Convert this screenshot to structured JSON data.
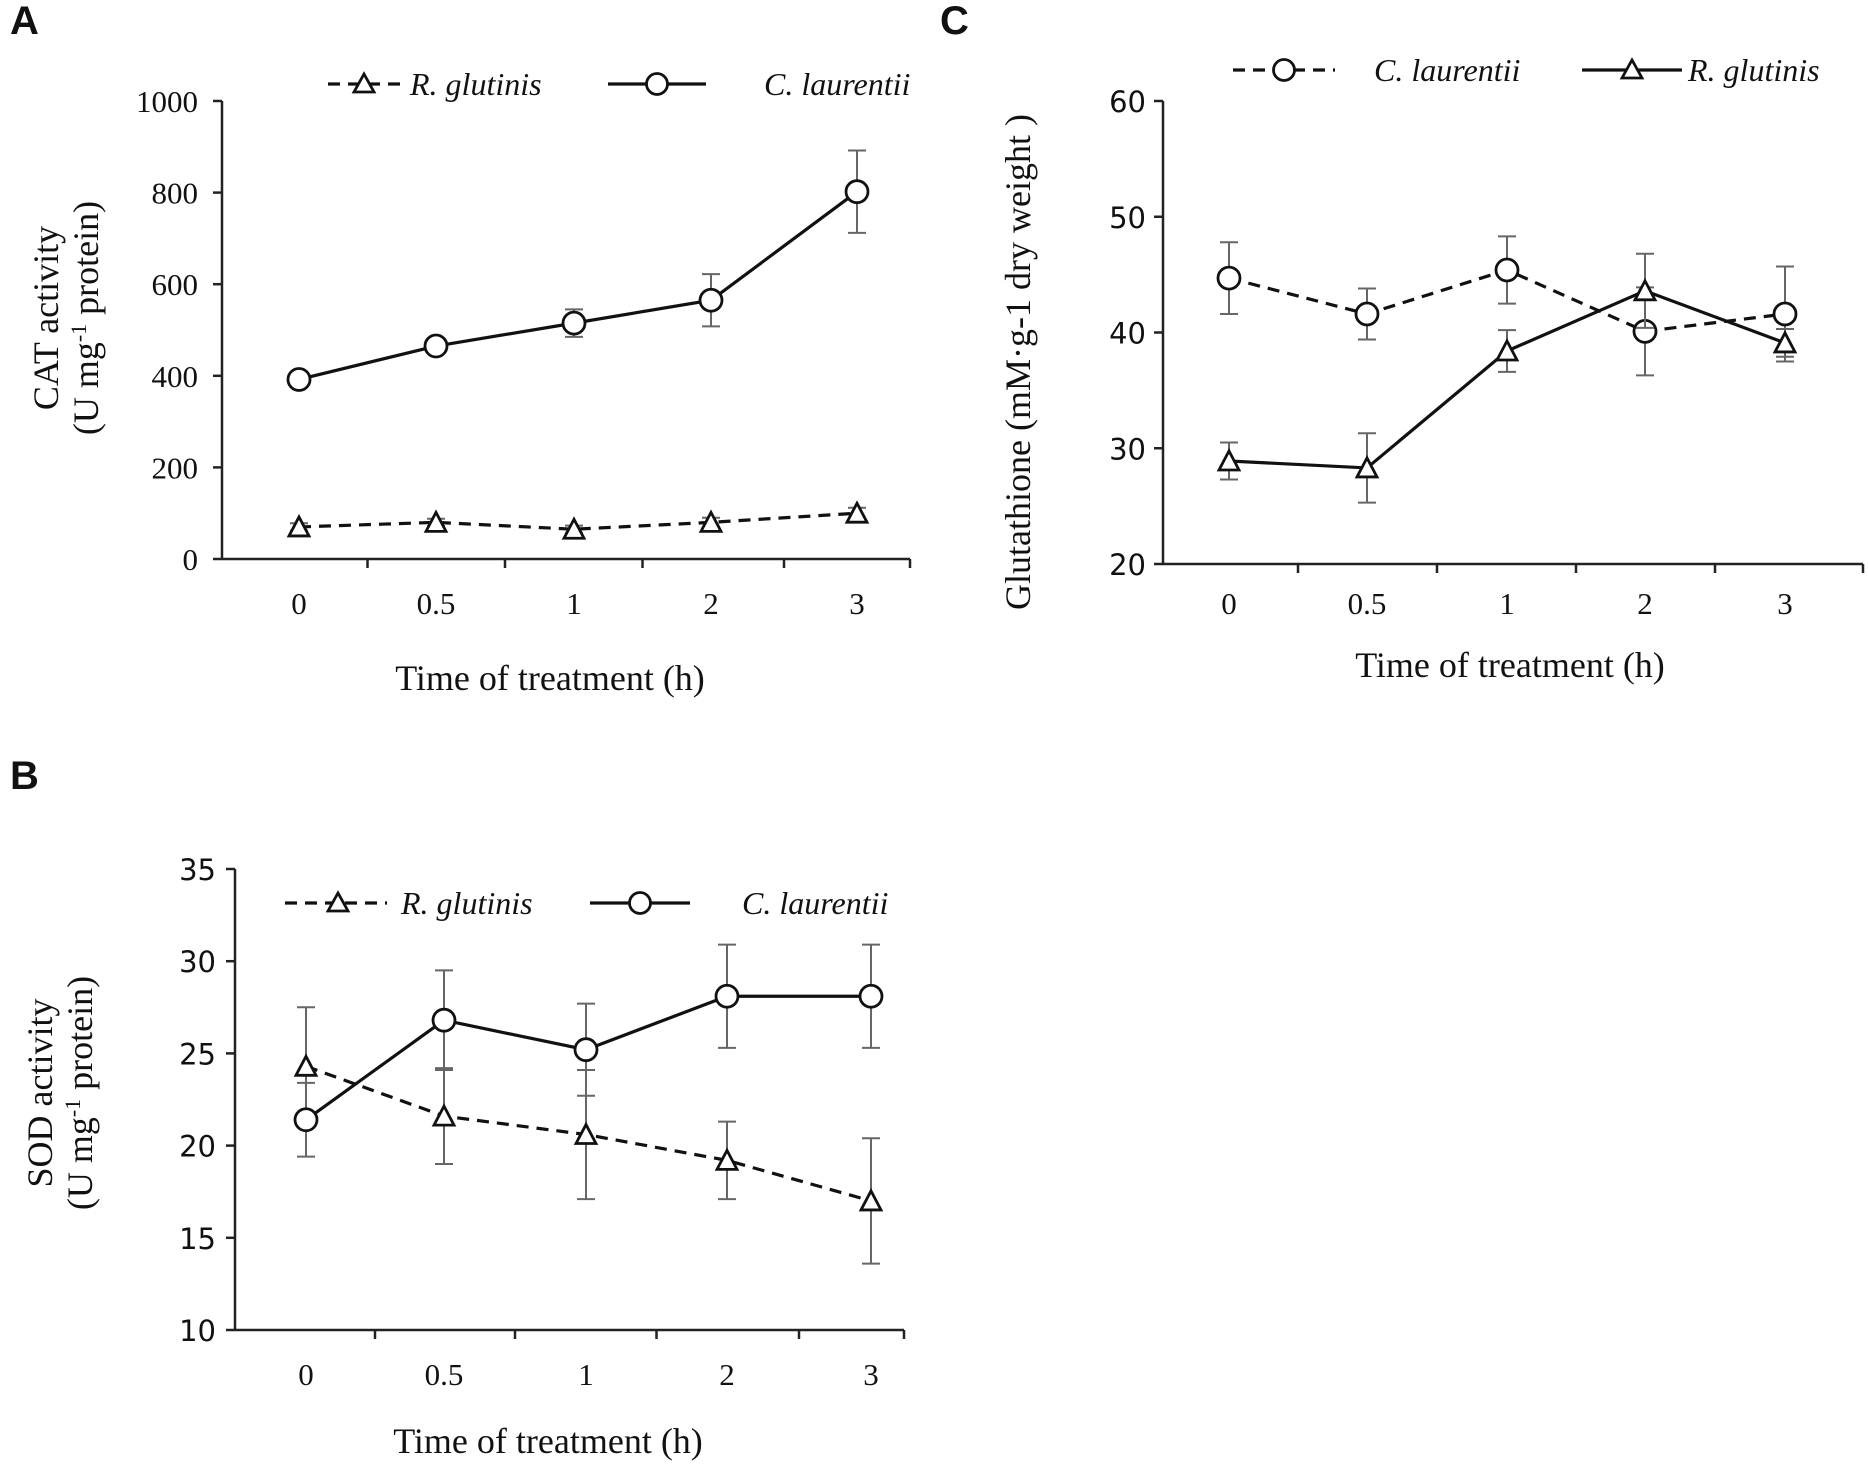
{
  "panels": [
    {
      "letter": "A"
    },
    {
      "letter": "B"
    },
    {
      "letter": "C"
    }
  ],
  "chart_data": [
    {
      "panel": "A",
      "type": "line",
      "categories": [
        "0",
        "0.5",
        "1",
        "2",
        "3"
      ],
      "xlabel": "Time of treatment (h)",
      "ylabel_line1": "CAT activity",
      "ylabel_line2_pre": "(U mg",
      "ylabel_line2_sup": "-1",
      "ylabel_line2_post": " protein)",
      "ylim": [
        0,
        1000
      ],
      "yticks": [
        0,
        200,
        400,
        600,
        800,
        1000
      ],
      "series": [
        {
          "name": "R. glutinis",
          "marker": "triangle",
          "dashed": true,
          "values": [
            70,
            80,
            65,
            80,
            100
          ],
          "errors": [
            8,
            8,
            8,
            10,
            12
          ]
        },
        {
          "name": "C. laurentii",
          "marker": "circle",
          "dashed": false,
          "values": [
            392,
            465,
            515,
            565,
            802
          ],
          "errors": [
            0,
            0,
            30,
            57,
            90
          ]
        }
      ]
    },
    {
      "panel": "B",
      "type": "line",
      "categories": [
        "0",
        "0.5",
        "1",
        "2",
        "3"
      ],
      "xlabel": "Time of treatment (h)",
      "ylabel_line1": "SOD activity",
      "ylabel_line2_pre": "(U mg",
      "ylabel_line2_sup": "-1",
      "ylabel_line2_post": " protein)",
      "ylim": [
        10,
        35
      ],
      "yticks": [
        10,
        15,
        20,
        25,
        30,
        35
      ],
      "series": [
        {
          "name": "R. glutinis",
          "marker": "triangle",
          "dashed": true,
          "values": [
            24.3,
            21.6,
            20.6,
            19.2,
            17.0
          ],
          "errors": [
            3.2,
            2.6,
            3.5,
            2.1,
            3.4
          ]
        },
        {
          "name": "C. laurentii",
          "marker": "circle",
          "dashed": false,
          "values": [
            21.4,
            26.8,
            25.2,
            28.1,
            28.1
          ],
          "errors": [
            2.0,
            2.7,
            2.5,
            2.8,
            2.8
          ]
        }
      ]
    },
    {
      "panel": "C",
      "type": "line",
      "categories": [
        "0",
        "0.5",
        "1",
        "2",
        "3"
      ],
      "xlabel": "Time of treatment (h)",
      "ylabel": "Glutathione (mM·g-1 dry weight )",
      "ylim": [
        20,
        60
      ],
      "yticks": [
        20,
        30,
        40,
        50,
        60
      ],
      "series": [
        {
          "name": "C. laurentii",
          "marker": "circle",
          "dashed": true,
          "values": [
            44.7,
            41.6,
            45.4,
            40.1,
            41.6
          ],
          "errors": [
            3.1,
            2.2,
            2.9,
            3.8,
            4.1
          ]
        },
        {
          "name": "R. glutinis",
          "marker": "triangle",
          "dashed": false,
          "values": [
            28.9,
            28.3,
            38.4,
            43.6,
            39.1
          ],
          "errors": [
            1.6,
            3.0,
            1.8,
            3.2,
            1.2
          ]
        }
      ]
    }
  ]
}
